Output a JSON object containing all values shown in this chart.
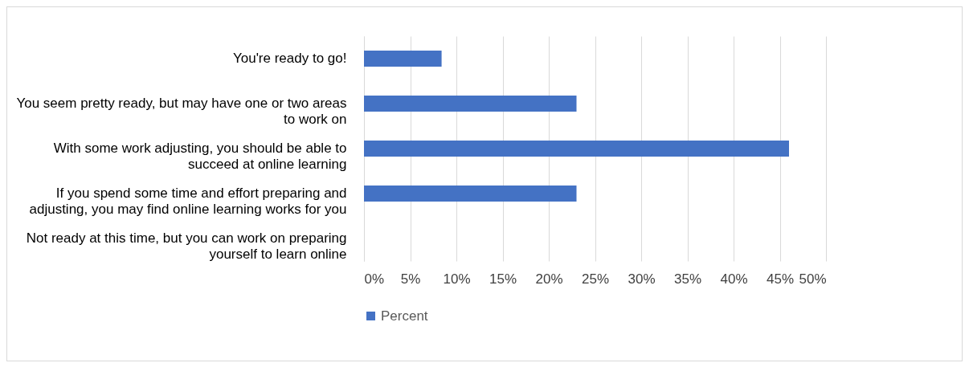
{
  "chart_data": {
    "type": "bar",
    "orientation": "horizontal",
    "categories": [
      "You're ready to go!",
      "You seem pretty ready, but may have one or two areas to work on",
      "With some work adjusting, you should be able to succeed at online learning",
      "If you spend some time and effort preparing and adjusting, you may find online learning works for you",
      "Not ready at this time, but you can work on preparing yourself to learn online"
    ],
    "series": [
      {
        "name": "Percent",
        "color": "#4472c4",
        "values": [
          8.4,
          23,
          46,
          23,
          0
        ]
      }
    ],
    "xlim": [
      0,
      50
    ],
    "xticks": [
      {
        "value": 0,
        "label": "0%"
      },
      {
        "value": 5,
        "label": "5%"
      },
      {
        "value": 10,
        "label": "10%"
      },
      {
        "value": 15,
        "label": "15%"
      },
      {
        "value": 20,
        "label": "20%"
      },
      {
        "value": 25,
        "label": "25%"
      },
      {
        "value": 30,
        "label": "30%"
      },
      {
        "value": 35,
        "label": "35%"
      },
      {
        "value": 40,
        "label": "40%"
      },
      {
        "value": 45,
        "label": "45%"
      },
      {
        "value": 50,
        "label": "50%"
      }
    ],
    "grid": "x",
    "legend": "bottom"
  }
}
